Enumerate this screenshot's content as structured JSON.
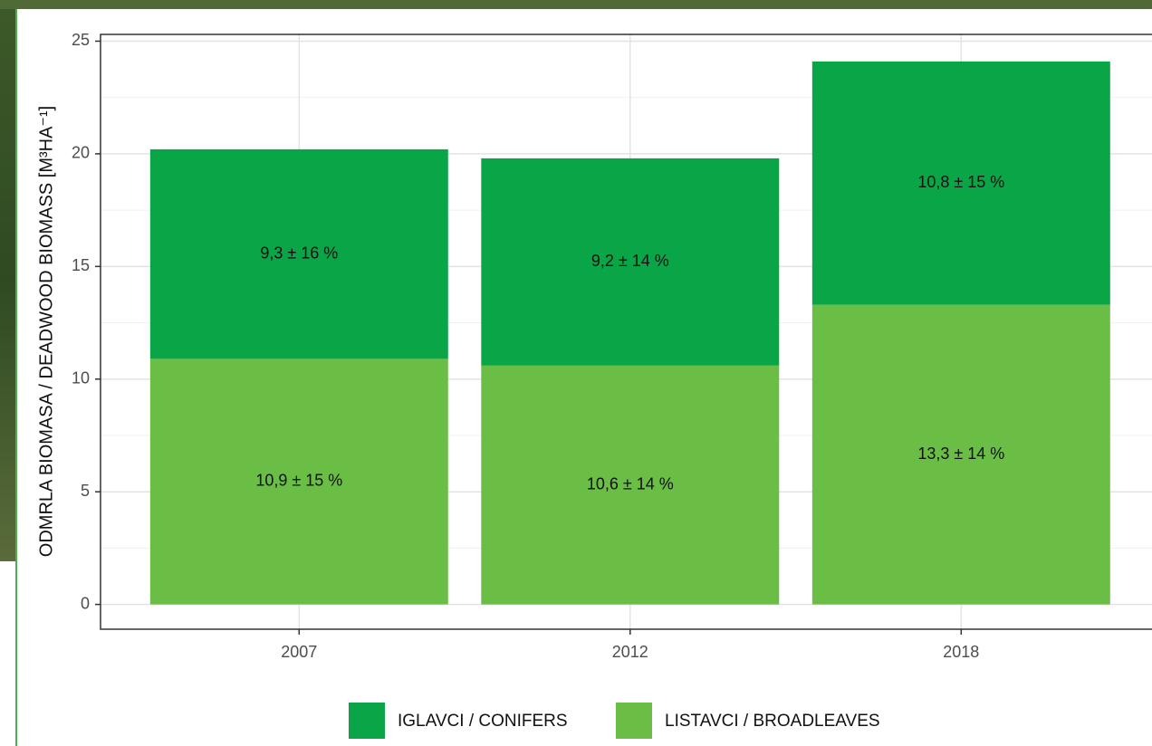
{
  "chart_data": {
    "type": "stacked_bar",
    "y_label": "ODMRLA BIOMASA / DEADWOOD BIOMASS [M³HA⁻¹]",
    "categories": [
      "2007",
      "2012",
      "2018"
    ],
    "series": [
      {
        "name": "IGLAVCI / CONIFERS",
        "color": "#0aa547",
        "values": [
          9.3,
          9.2,
          10.8
        ],
        "value_labels": [
          "9,3 ± 16 %",
          "9,2 ± 14 %",
          "10,8 ± 15 %"
        ]
      },
      {
        "name": "LISTAVCI / BROADLEAVES",
        "color": "#6abd45",
        "values": [
          10.9,
          10.6,
          13.3
        ],
        "value_labels": [
          "10,9 ± 15 %",
          "10,6 ± 14 %",
          "13,3 ± 14 %"
        ]
      }
    ],
    "ylim": [
      -1.1,
      25.3
    ],
    "yticks": [
      0,
      5,
      10,
      15,
      20,
      25
    ],
    "grid": true,
    "legend": "bottom"
  }
}
